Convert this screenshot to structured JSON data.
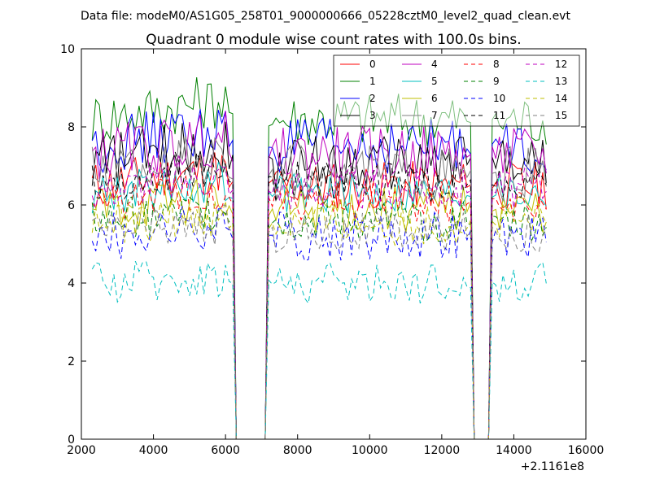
{
  "suptitle": "Data file: modeM0/AS1G05_258T01_9000000666_05228cztM0_level2_quad_clean.evt",
  "chart_data": {
    "type": "line",
    "title": "Quadrant 0 module wise count rates with 100.0s bins.",
    "xlabel": "",
    "ylabel": "",
    "xlim": [
      2000,
      16000
    ],
    "ylim": [
      0,
      10
    ],
    "x_offset_label": "+2.1161e8",
    "x_ticks": [
      2000,
      4000,
      6000,
      8000,
      10000,
      12000,
      14000,
      16000
    ],
    "y_ticks": [
      0,
      2,
      4,
      6,
      8,
      10
    ],
    "grid": false,
    "legend_position": "top-right",
    "legend_columns": 4,
    "x": [
      2300,
      2400,
      2500,
      2600,
      2700,
      2800,
      2900,
      3000,
      3100,
      3200,
      3300,
      3400,
      3500,
      3600,
      3700,
      3800,
      3900,
      4000,
      4100,
      4200,
      4300,
      4400,
      4500,
      4600,
      4700,
      4800,
      4900,
      5000,
      5100,
      5200,
      5300,
      5400,
      5500,
      5600,
      5700,
      5800,
      5900,
      6000,
      6100,
      6200,
      6300,
      6400,
      6500,
      6600,
      6700,
      6800,
      6900,
      7000,
      7100,
      7200,
      7300,
      7400,
      7500,
      7600,
      7700,
      7800,
      7900,
      8000,
      8100,
      8200,
      8300,
      8400,
      8500,
      8600,
      8700,
      8800,
      8900,
      9000,
      9100,
      9200,
      9300,
      9400,
      9500,
      9600,
      9700,
      9800,
      9900,
      10000,
      10100,
      10200,
      10300,
      10400,
      10500,
      10600,
      10700,
      10800,
      10900,
      11000,
      11100,
      11200,
      11300,
      11400,
      11500,
      11600,
      11700,
      11800,
      11900,
      12000,
      12100,
      12200,
      12300,
      12400,
      12500,
      12600,
      12700,
      12800,
      12900,
      13000,
      13100,
      13200,
      13300,
      13400,
      13500,
      13600,
      13700,
      13800,
      13900,
      14000,
      14100,
      14200,
      14300,
      14400,
      14500,
      14600,
      14700,
      14800,
      14900
    ],
    "gaps": [
      [
        6200,
        7200
      ],
      [
        12800,
        13400
      ]
    ],
    "series": [
      {
        "name": "0",
        "color": "#ff0000",
        "dash": "solid",
        "base": 6.5,
        "amp": 0.35,
        "drift": 0.9
      },
      {
        "name": "1",
        "color": "#008000",
        "dash": "solid",
        "base": 8.2,
        "amp": 0.4,
        "drift": 1.1
      },
      {
        "name": "2",
        "color": "#0000ff",
        "dash": "solid",
        "base": 7.5,
        "amp": 0.4,
        "drift": 1.0
      },
      {
        "name": "3",
        "color": "#000000",
        "dash": "solid",
        "base": 7.1,
        "amp": 0.4,
        "drift": 1.0
      },
      {
        "name": "4",
        "color": "#bf00bf",
        "dash": "solid",
        "base": 7.3,
        "amp": 0.4,
        "drift": 0.9
      },
      {
        "name": "5",
        "color": "#00bfbf",
        "dash": "solid",
        "base": 6.3,
        "amp": 0.3,
        "drift": 0.6
      },
      {
        "name": "6",
        "color": "#bfbf00",
        "dash": "solid",
        "base": 5.9,
        "amp": 0.35,
        "drift": 0.6
      },
      {
        "name": "7",
        "color": "#808080",
        "dash": "solid",
        "base": 6.8,
        "amp": 0.4,
        "drift": 0.9
      },
      {
        "name": "8",
        "color": "#ff0000",
        "dash": "dashed",
        "base": 6.1,
        "amp": 0.3,
        "drift": 0.7
      },
      {
        "name": "9",
        "color": "#008000",
        "dash": "dashed",
        "base": 5.6,
        "amp": 0.3,
        "drift": 0.6
      },
      {
        "name": "10",
        "color": "#0000ff",
        "dash": "dashed",
        "base": 5.2,
        "amp": 0.35,
        "drift": 0.5
      },
      {
        "name": "11",
        "color": "#000000",
        "dash": "dashed",
        "base": 6.6,
        "amp": 0.3,
        "drift": 0.8
      },
      {
        "name": "12",
        "color": "#bf00bf",
        "dash": "dashed",
        "base": 6.4,
        "amp": 0.3,
        "drift": 0.8
      },
      {
        "name": "13",
        "color": "#00bfbf",
        "dash": "dashed",
        "base": 4.0,
        "amp": 0.3,
        "drift": 0.4
      },
      {
        "name": "14",
        "color": "#bfbf00",
        "dash": "dashed",
        "base": 5.5,
        "amp": 0.3,
        "drift": 0.5
      },
      {
        "name": "15",
        "color": "#808080",
        "dash": "dashed",
        "base": 5.3,
        "amp": 0.3,
        "drift": 0.5
      }
    ]
  }
}
